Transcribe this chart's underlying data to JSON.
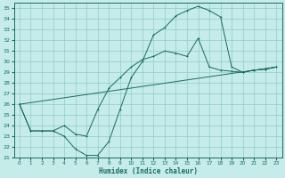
{
  "xlabel": "Humidex (Indice chaleur)",
  "ylabel": "",
  "bg_color": "#c5ece8",
  "grid_color": "#90ccc8",
  "line_color": "#1a6b60",
  "xlim": [
    -0.5,
    23.5
  ],
  "ylim": [
    21,
    35.5
  ],
  "xticks": [
    0,
    1,
    2,
    3,
    4,
    5,
    6,
    7,
    8,
    9,
    10,
    11,
    12,
    13,
    14,
    15,
    16,
    17,
    18,
    19,
    20,
    21,
    22,
    23
  ],
  "yticks": [
    21,
    22,
    23,
    24,
    25,
    26,
    27,
    28,
    29,
    30,
    31,
    32,
    33,
    34,
    35
  ],
  "line1_x": [
    0,
    1,
    2,
    3,
    4,
    5,
    6,
    7,
    8,
    9,
    10,
    11,
    12,
    13,
    14,
    15,
    16,
    17,
    18,
    19,
    20,
    21,
    22,
    23
  ],
  "line1_y": [
    26.0,
    23.5,
    23.5,
    23.5,
    23.0,
    21.8,
    21.2,
    21.2,
    22.5,
    25.5,
    28.5,
    30.0,
    32.5,
    33.2,
    34.3,
    34.8,
    35.2,
    34.8,
    34.2,
    29.5,
    29.0,
    29.2,
    29.3,
    29.5
  ],
  "line2_x": [
    0,
    1,
    2,
    3,
    4,
    5,
    6,
    7,
    8,
    9,
    10,
    11,
    12,
    13,
    14,
    15,
    16,
    17,
    18,
    19,
    20,
    21,
    22,
    23
  ],
  "line2_y": [
    26.0,
    23.5,
    23.5,
    23.5,
    24.0,
    23.2,
    23.0,
    25.5,
    27.5,
    28.5,
    29.5,
    30.2,
    30.5,
    31.0,
    30.8,
    30.5,
    32.2,
    29.5,
    29.2,
    29.1,
    29.0,
    29.2,
    29.3,
    29.5
  ],
  "line3_x": [
    0,
    23
  ],
  "line3_y": [
    26.0,
    29.5
  ]
}
